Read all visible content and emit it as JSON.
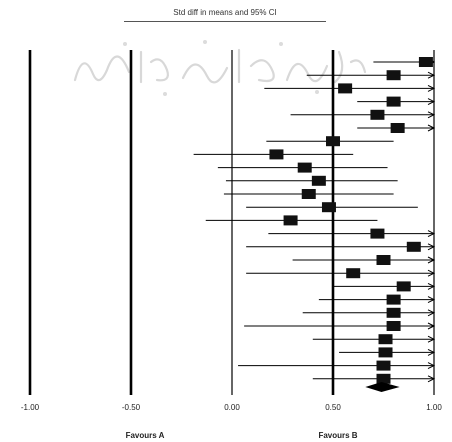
{
  "chart_data": {
    "type": "forest",
    "title": "Std diff in means and 95% CI",
    "x_ticks": [
      "-1.00",
      "-0.50",
      "0.00",
      "0.50",
      "1.00"
    ],
    "xlim": [
      -1.0,
      1.0
    ],
    "favours_left": "Favours A",
    "favours_right": "Favours B",
    "studies": [
      {
        "est": 0.96,
        "lo": 0.7,
        "hi": 1.0,
        "arrow": true
      },
      {
        "est": 0.8,
        "lo": 0.37,
        "hi": 1.0,
        "arrow": true
      },
      {
        "est": 0.56,
        "lo": 0.16,
        "hi": 1.0,
        "arrow": true
      },
      {
        "est": 0.8,
        "lo": 0.62,
        "hi": 1.0,
        "arrow": true
      },
      {
        "est": 0.72,
        "lo": 0.29,
        "hi": 1.0,
        "arrow": true
      },
      {
        "est": 0.82,
        "lo": 0.62,
        "hi": 1.0,
        "arrow": true
      },
      {
        "est": 0.5,
        "lo": 0.17,
        "hi": 0.8,
        "arrow": false
      },
      {
        "est": 0.22,
        "lo": -0.19,
        "hi": 0.6,
        "arrow": false
      },
      {
        "est": 0.36,
        "lo": -0.07,
        "hi": 0.77,
        "arrow": false
      },
      {
        "est": 0.43,
        "lo": -0.03,
        "hi": 0.82,
        "arrow": false
      },
      {
        "est": 0.38,
        "lo": -0.04,
        "hi": 0.8,
        "arrow": false
      },
      {
        "est": 0.48,
        "lo": 0.07,
        "hi": 0.92,
        "arrow": false
      },
      {
        "est": 0.29,
        "lo": -0.13,
        "hi": 0.72,
        "arrow": false
      },
      {
        "est": 0.72,
        "lo": 0.18,
        "hi": 1.0,
        "arrow": true
      },
      {
        "est": 0.9,
        "lo": 0.07,
        "hi": 1.0,
        "arrow": true
      },
      {
        "est": 0.75,
        "lo": 0.3,
        "hi": 1.0,
        "arrow": true
      },
      {
        "est": 0.6,
        "lo": 0.07,
        "hi": 1.0,
        "arrow": true
      },
      {
        "est": 0.85,
        "lo": 0.5,
        "hi": 1.0,
        "arrow": true
      },
      {
        "est": 0.8,
        "lo": 0.43,
        "hi": 1.0,
        "arrow": true
      },
      {
        "est": 0.8,
        "lo": 0.35,
        "hi": 1.0,
        "arrow": true
      },
      {
        "est": 0.8,
        "lo": 0.06,
        "hi": 1.0,
        "arrow": true
      },
      {
        "est": 0.76,
        "lo": 0.4,
        "hi": 1.0,
        "arrow": true
      },
      {
        "est": 0.76,
        "lo": 0.53,
        "hi": 1.0,
        "arrow": true
      },
      {
        "est": 0.75,
        "lo": 0.03,
        "hi": 1.0,
        "arrow": true
      },
      {
        "est": 0.75,
        "lo": 0.4,
        "hi": 1.0,
        "arrow": true
      }
    ],
    "summary": {
      "est": 0.74,
      "lo": 0.66,
      "hi": 0.83
    }
  }
}
